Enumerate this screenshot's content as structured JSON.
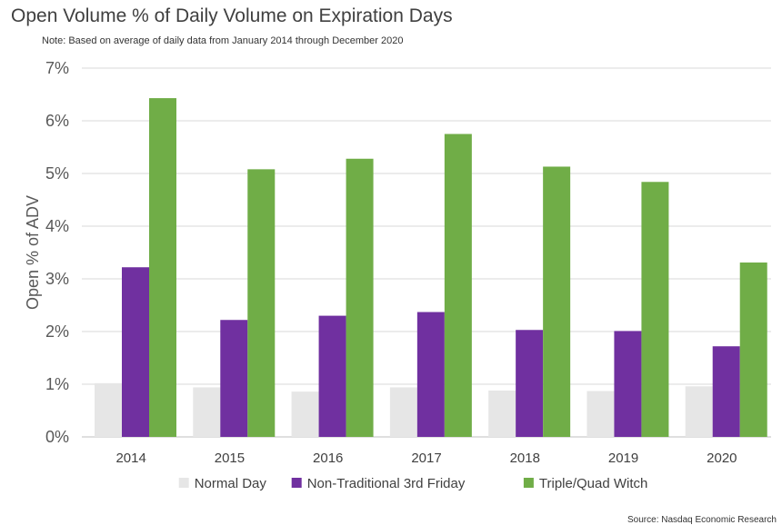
{
  "chart_data": {
    "type": "bar",
    "title": "Open Volume % of Daily Volume on Expiration Days",
    "note": "Note: Based on average of daily data from January 2014 through December 2020",
    "ylabel": "Open % of ADV",
    "xlabel": "",
    "ylim": [
      0,
      7
    ],
    "yticks": [
      "0%",
      "1%",
      "2%",
      "3%",
      "4%",
      "5%",
      "6%",
      "7%"
    ],
    "grid": true,
    "legend_position": "bottom",
    "categories": [
      "2014",
      "2015",
      "2016",
      "2017",
      "2018",
      "2019",
      "2020"
    ],
    "series": [
      {
        "name": "Normal Day",
        "color": "#e6e6e6",
        "values": [
          1.02,
          0.94,
          0.86,
          0.94,
          0.88,
          0.87,
          0.96
        ]
      },
      {
        "name": "Non-Traditional 3rd Friday",
        "color": "#7030a0",
        "values": [
          3.22,
          2.22,
          2.3,
          2.37,
          2.03,
          2.01,
          1.72
        ]
      },
      {
        "name": "Triple/Quad Witch",
        "color": "#70ad47",
        "values": [
          6.43,
          5.08,
          5.28,
          5.75,
          5.13,
          4.84,
          3.31
        ]
      }
    ],
    "source": "Source: Nasdaq Economic Research"
  }
}
